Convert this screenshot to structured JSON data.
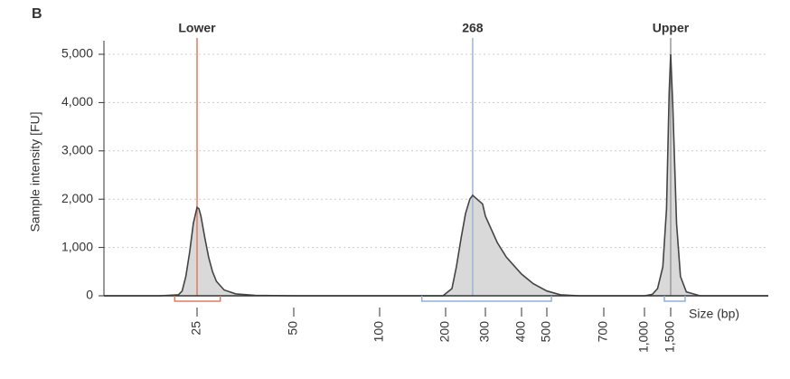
{
  "chart_data": {
    "type": "electropherogram",
    "panel_label": "B",
    "ylabel": "Sample intensity [FU]",
    "xlabel": "Size (bp)",
    "ylim": [
      0,
      5000
    ],
    "yticks": [
      0,
      {
        "value": 1000,
        "label": "1,000"
      },
      {
        "value": 2000,
        "label": "2,000"
      },
      {
        "value": 3000,
        "label": "3,000"
      },
      {
        "value": 4000,
        "label": "4,000"
      },
      {
        "value": 5000,
        "label": "5,000"
      }
    ],
    "xlim": [
      0,
      2000
    ],
    "xticks": [
      25,
      50,
      100,
      200,
      300,
      400,
      500,
      700,
      {
        "value": 1000,
        "label": "1,000"
      },
      {
        "value": 1500,
        "label": "1,500"
      }
    ],
    "grid": true,
    "fill_color": "#d9d9d9",
    "line_color": "#444444",
    "x": [
      0,
      15,
      20,
      21,
      22,
      23,
      24,
      25,
      25.5,
      26,
      27,
      28,
      29,
      30,
      32,
      35,
      40,
      50,
      100,
      150,
      196,
      216,
      227,
      239,
      250,
      261,
      268,
      293,
      300,
      333,
      358,
      400,
      446,
      500,
      548,
      611,
      700,
      1000,
      1150,
      1250,
      1350,
      1420,
      1470,
      1500,
      1510,
      1530,
      1550,
      1580,
      1650,
      2000
    ],
    "values": [
      0,
      0,
      20,
      100,
      400,
      900,
      1500,
      1830,
      1800,
      1650,
      1200,
      800,
      500,
      300,
      120,
      40,
      10,
      0,
      0,
      0,
      0,
      150,
      600,
      1200,
      1700,
      2000,
      2080,
      1900,
      1650,
      1100,
      800,
      450,
      250,
      100,
      20,
      0,
      0,
      0,
      30,
      150,
      600,
      1800,
      4200,
      5000,
      4000,
      1500,
      400,
      80,
      0,
      0
    ],
    "markers": [
      {
        "label": "Lower",
        "x": 25,
        "color": "#e07a5f"
      },
      {
        "label": "268",
        "x": 268,
        "color": "#9bb5d6"
      },
      {
        "label": "Upper",
        "x": 1500,
        "color": "#999999"
      }
    ],
    "regions": [
      {
        "from": 19,
        "to": 31,
        "color": "#e07a5f"
      },
      {
        "from": 164,
        "to": 516,
        "color": "#8fb0d8"
      },
      {
        "from": 1380,
        "to": 1574,
        "color": "#8fb0d8"
      }
    ]
  }
}
